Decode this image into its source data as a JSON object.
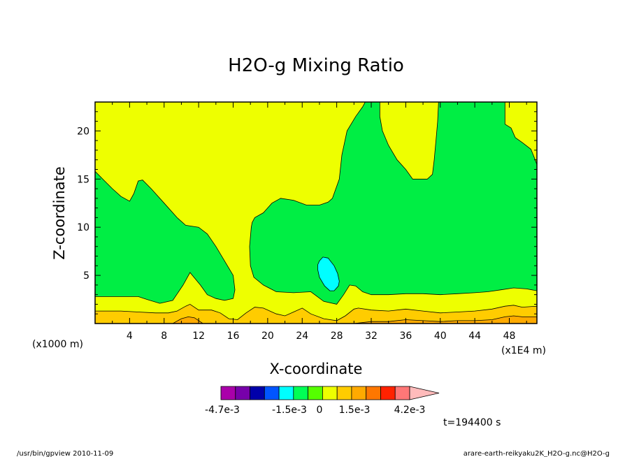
{
  "chart_data": {
    "type": "heatmap",
    "title": "H2O-g Mixing Ratio",
    "xlabel": "X-coordinate",
    "ylabel": "Z-coordinate",
    "x_unit": "(x1E4 m)",
    "y_unit": "(x1000 m)",
    "xlim": [
      0,
      51.2
    ],
    "ylim": [
      0,
      23
    ],
    "xticks": [
      4,
      8,
      12,
      16,
      20,
      24,
      28,
      32,
      36,
      40,
      44,
      48
    ],
    "yticks": [
      5,
      10,
      15,
      20
    ],
    "time_label": "t=194400 s",
    "colorbar": {
      "tick_labels": [
        "-4.7e-3",
        "-1.5e-3",
        "0",
        "1.5e-3",
        "4.2e-3"
      ],
      "colors": [
        "#aa00aa",
        "#7700aa",
        "#0000aa",
        "#0055ff",
        "#00ffff",
        "#00ff55",
        "#55ff00",
        "#eeff00",
        "#ffcc00",
        "#ffaa00",
        "#ff7700",
        "#ff2200",
        "#ff7777",
        "#ffbbbb"
      ]
    },
    "regions": [
      {
        "level": "yellow",
        "color": "#eeff00",
        "polygon": [
          [
            0,
            0
          ],
          [
            51.2,
            0
          ],
          [
            51.2,
            23
          ],
          [
            0,
            23
          ]
        ]
      },
      {
        "level": "green",
        "color": "#00ee44",
        "polygon": [
          [
            0,
            15.8
          ],
          [
            1,
            14.9
          ],
          [
            2,
            14
          ],
          [
            3,
            13.2
          ],
          [
            4,
            12.7
          ],
          [
            4.5,
            13.5
          ],
          [
            5,
            14.8
          ],
          [
            5.5,
            14.9
          ],
          [
            6.5,
            14
          ],
          [
            8,
            12.5
          ],
          [
            9.5,
            11
          ],
          [
            10.5,
            10.2
          ],
          [
            12,
            10
          ],
          [
            13,
            9.3
          ],
          [
            14,
            8
          ],
          [
            15,
            6.5
          ],
          [
            16,
            5
          ],
          [
            16.2,
            3.5
          ],
          [
            16,
            2.6
          ],
          [
            15,
            2.4
          ],
          [
            14,
            2.6
          ],
          [
            13,
            3
          ],
          [
            12.2,
            4
          ],
          [
            11,
            5.3
          ],
          [
            10.2,
            4
          ],
          [
            9,
            2.4
          ],
          [
            7.5,
            2.1
          ],
          [
            6,
            2.5
          ],
          [
            5,
            2.8
          ],
          [
            2.5,
            2.8
          ],
          [
            0,
            2.8
          ]
        ]
      },
      {
        "level": "green",
        "color": "#00ee44",
        "polygon": [
          [
            18.2,
            10.5
          ],
          [
            18.5,
            11
          ],
          [
            19.5,
            11.5
          ],
          [
            20.5,
            12.5
          ],
          [
            21.5,
            13
          ],
          [
            23,
            12.8
          ],
          [
            24.5,
            12.3
          ],
          [
            26,
            12.3
          ],
          [
            27,
            12.6
          ],
          [
            27.5,
            13
          ],
          [
            28.3,
            15
          ],
          [
            28.6,
            17.5
          ],
          [
            29.2,
            20
          ],
          [
            30.2,
            21.5
          ],
          [
            31,
            22.5
          ],
          [
            31.3,
            23
          ],
          [
            33,
            23
          ],
          [
            33,
            21.5
          ],
          [
            33.3,
            20
          ],
          [
            34,
            18.5
          ],
          [
            35,
            17
          ],
          [
            36,
            16
          ],
          [
            36.8,
            15
          ],
          [
            38.5,
            15
          ],
          [
            39.1,
            15.5
          ],
          [
            39.3,
            17
          ],
          [
            39.5,
            19
          ],
          [
            39.7,
            21
          ],
          [
            39.8,
            23
          ],
          [
            47.5,
            23
          ],
          [
            47.5,
            20.7
          ],
          [
            48.2,
            20.3
          ],
          [
            48.7,
            19.3
          ],
          [
            49.5,
            18.8
          ],
          [
            50.5,
            18.1
          ],
          [
            51,
            17
          ],
          [
            51.2,
            16.5
          ],
          [
            51.2,
            3.4
          ],
          [
            50,
            3.6
          ],
          [
            48.5,
            3.7
          ],
          [
            47,
            3.5
          ],
          [
            45.5,
            3.3
          ],
          [
            44,
            3.2
          ],
          [
            42,
            3.1
          ],
          [
            40,
            3
          ],
          [
            38,
            3.1
          ],
          [
            36,
            3.1
          ],
          [
            34,
            3
          ],
          [
            32,
            3
          ],
          [
            31,
            3.3
          ],
          [
            30.2,
            3.9
          ],
          [
            29.5,
            4
          ],
          [
            28.8,
            3
          ],
          [
            28,
            2
          ],
          [
            26.5,
            2.3
          ],
          [
            25,
            3.3
          ],
          [
            23,
            3.2
          ],
          [
            21,
            3.3
          ],
          [
            19.5,
            4
          ],
          [
            18.4,
            4.8
          ],
          [
            18,
            6
          ],
          [
            17.9,
            8
          ],
          [
            18.1,
            10
          ]
        ]
      },
      {
        "level": "cyan",
        "color": "#00ffff",
        "polygon": [
          [
            26,
            6.5
          ],
          [
            26.4,
            6.9
          ],
          [
            27,
            6.8
          ],
          [
            27.7,
            6
          ],
          [
            28.1,
            5.2
          ],
          [
            28.3,
            4.4
          ],
          [
            28.2,
            3.9
          ],
          [
            27.7,
            3.4
          ],
          [
            27.2,
            3.4
          ],
          [
            26.6,
            3.9
          ],
          [
            26,
            4.8
          ],
          [
            25.8,
            5.6
          ],
          [
            25.8,
            6.1
          ]
        ]
      },
      {
        "level": "yellow-orange",
        "color": "#ffcc00",
        "polygon": [
          [
            0,
            0
          ],
          [
            51.2,
            0
          ],
          [
            51.2,
            1.8
          ],
          [
            49.5,
            1.7
          ],
          [
            48.5,
            1.9
          ],
          [
            47.5,
            1.8
          ],
          [
            46,
            1.5
          ],
          [
            44,
            1.3
          ],
          [
            42,
            1.2
          ],
          [
            40,
            1.1
          ],
          [
            38,
            1.3
          ],
          [
            36,
            1.5
          ],
          [
            34,
            1.3
          ],
          [
            32,
            1.4
          ],
          [
            30.5,
            1.6
          ],
          [
            30,
            1.5
          ],
          [
            29,
            0.8
          ],
          [
            28,
            0.3
          ],
          [
            26.5,
            0.5
          ],
          [
            25,
            1
          ],
          [
            24,
            1.6
          ],
          [
            23,
            1.2
          ],
          [
            22,
            0.8
          ],
          [
            21,
            1
          ],
          [
            20.5,
            1.2
          ],
          [
            19.5,
            1.6
          ],
          [
            18.5,
            1.7
          ],
          [
            17.5,
            1.1
          ],
          [
            16.5,
            0.4
          ],
          [
            15.5,
            0.5
          ],
          [
            14.5,
            1.1
          ],
          [
            13.5,
            1.4
          ],
          [
            12,
            1.4
          ],
          [
            11,
            2
          ],
          [
            10.5,
            1.8
          ],
          [
            9.5,
            1.3
          ],
          [
            8.5,
            1.1
          ],
          [
            7,
            1.1
          ],
          [
            5,
            1.2
          ],
          [
            3,
            1.3
          ],
          [
            0,
            1.3
          ]
        ]
      },
      {
        "level": "orange",
        "color": "#ffaa00",
        "polygon": [
          [
            0,
            0
          ],
          [
            51.2,
            0
          ],
          [
            51.2,
            0.7
          ],
          [
            49.5,
            0.7
          ],
          [
            48.5,
            0.8
          ],
          [
            47.5,
            0.7
          ],
          [
            46,
            0.4
          ],
          [
            44,
            0.3
          ],
          [
            42,
            0.3
          ],
          [
            40,
            0.2
          ],
          [
            38,
            0.3
          ],
          [
            36,
            0.4
          ],
          [
            34,
            0.2
          ],
          [
            32,
            0.2
          ],
          [
            30,
            0
          ],
          [
            12.5,
            0
          ],
          [
            11.5,
            0.6
          ],
          [
            10.8,
            0.7
          ],
          [
            10,
            0.5
          ],
          [
            9,
            0
          ],
          [
            0,
            0
          ]
        ]
      }
    ]
  },
  "footer": {
    "left": "/usr/bin/gpview  2010-11-09",
    "right": "arare-earth-reikyaku2K_H2O-g.nc@H2O-g"
  }
}
